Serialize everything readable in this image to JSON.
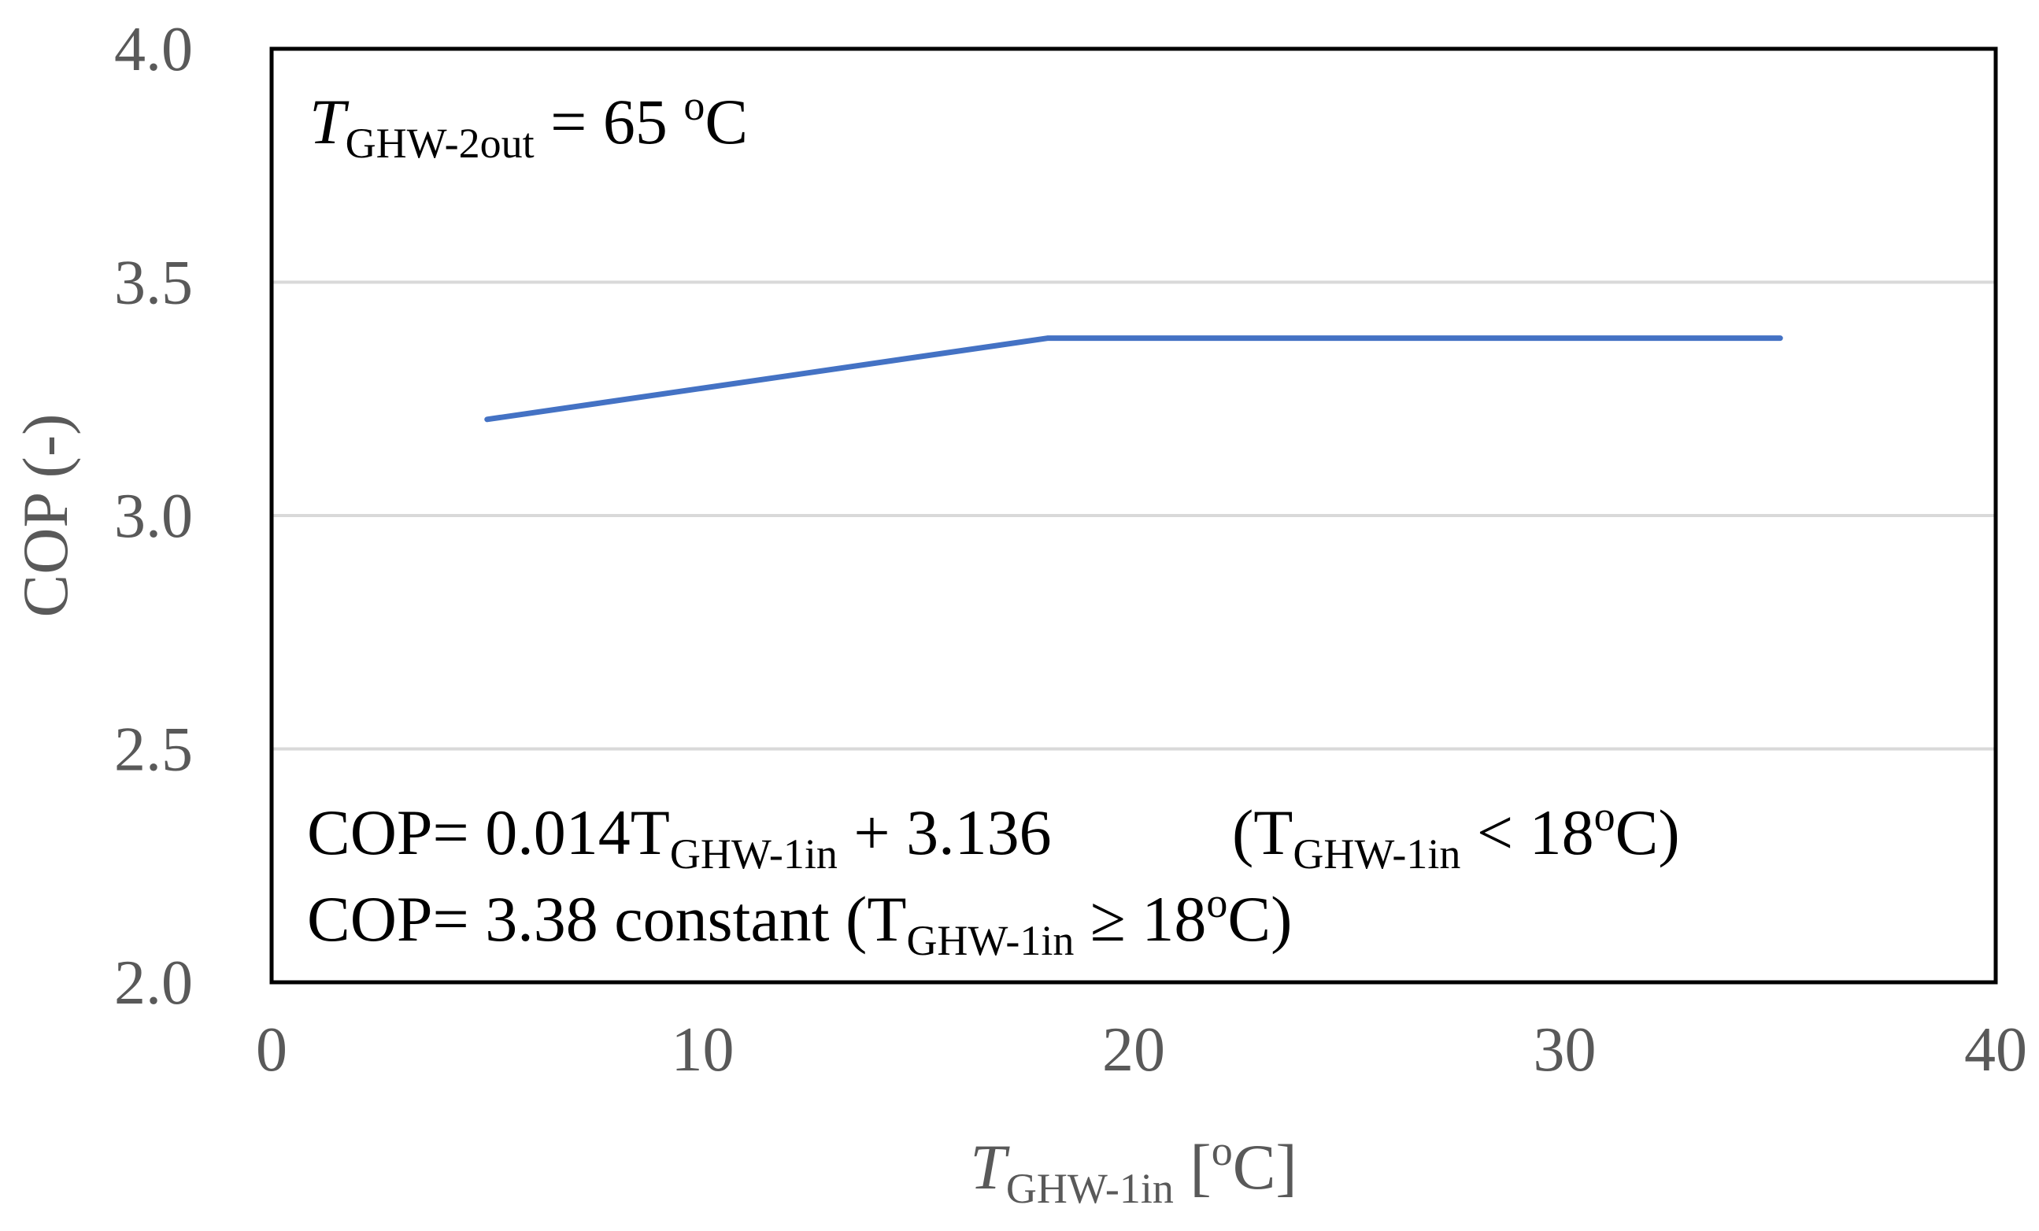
{
  "chart_data": {
    "type": "line",
    "series": [
      {
        "name": "COP",
        "color": "#4472C4",
        "points": [
          [
            5,
            3.206
          ],
          [
            18,
            3.38
          ],
          [
            35,
            3.38
          ]
        ]
      }
    ],
    "xlim": [
      0,
      40
    ],
    "ylim": [
      2.0,
      4.0
    ],
    "x_ticks": [
      0,
      10,
      20,
      30,
      40
    ],
    "y_ticks": [
      2.0,
      2.5,
      3.0,
      3.5,
      4.0
    ],
    "x_tick_labels": [
      "0",
      "10",
      "20",
      "30",
      "40"
    ],
    "y_tick_labels": [
      "2.0",
      "2.5",
      "3.0",
      "3.5",
      "4.0"
    ],
    "grid": "horizontal",
    "grid_color": "#d9d9d9",
    "frame_color": "#000000",
    "ylabel": "COP (-)",
    "xlabel": {
      "main": "T",
      "sub": "GHW-1in",
      "unit_open": " [",
      "unit_sup": "o",
      "unit_close": "C]"
    },
    "annotations": {
      "top_main": "T",
      "top_sub": "GHW-2out",
      "top_eq": " = 65 ",
      "top_sup": "o",
      "top_unit": "C",
      "eq1_a": "COP= 0.014T",
      "eq1_sub": "GHW-1in",
      "eq1_b": " + 3.136",
      "eq1_open": "(T",
      "eq1_sub2": "GHW-1in",
      "eq1_cmp": " < 18",
      "eq1_sup": "o",
      "eq1_close": "C)",
      "eq2_a": "COP= 3.38  constant (T",
      "eq2_sub": "GHW-1in",
      "eq2_cmp": " ≥ 18",
      "eq2_sup": "o",
      "eq2_close": "C)"
    }
  }
}
